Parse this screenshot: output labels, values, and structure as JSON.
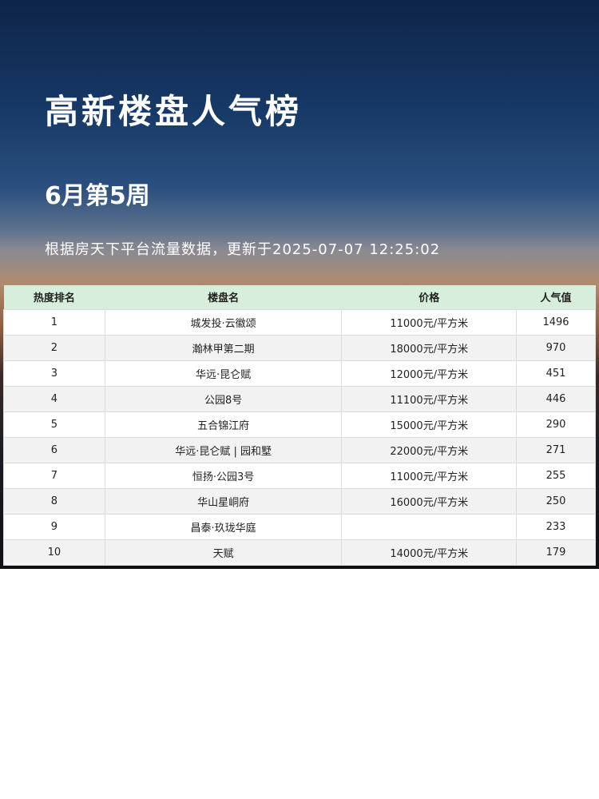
{
  "title": "高新楼盘人气榜",
  "week": "6月第5周",
  "info": "根据房天下平台流量数据，更新于2025-07-07  12:25:02",
  "table": {
    "headers": [
      "热度排名",
      "楼盘名",
      "价格",
      "人气值"
    ],
    "rows": [
      [
        "1",
        "城发投·云徽颂",
        "11000元/平方米",
        "1496"
      ],
      [
        "2",
        "瀚林甲第二期",
        "18000元/平方米",
        "970"
      ],
      [
        "3",
        "华远·昆仑赋",
        "12000元/平方米",
        "451"
      ],
      [
        "4",
        "公园8号",
        "11100元/平方米",
        "446"
      ],
      [
        "5",
        "五合锦江府",
        "15000元/平方米",
        "290"
      ],
      [
        "6",
        "华远·昆仑赋 | 园和墅",
        "22000元/平方米",
        "271"
      ],
      [
        "7",
        "恒扬·公园3号",
        "11000元/平方米",
        "255"
      ],
      [
        "8",
        "华山星峒府",
        "16000元/平方米",
        "250"
      ],
      [
        "9",
        "昌泰·玖珑华庭",
        "",
        "233"
      ],
      [
        "10",
        "天赋",
        "14000元/平方米",
        "179"
      ]
    ]
  }
}
